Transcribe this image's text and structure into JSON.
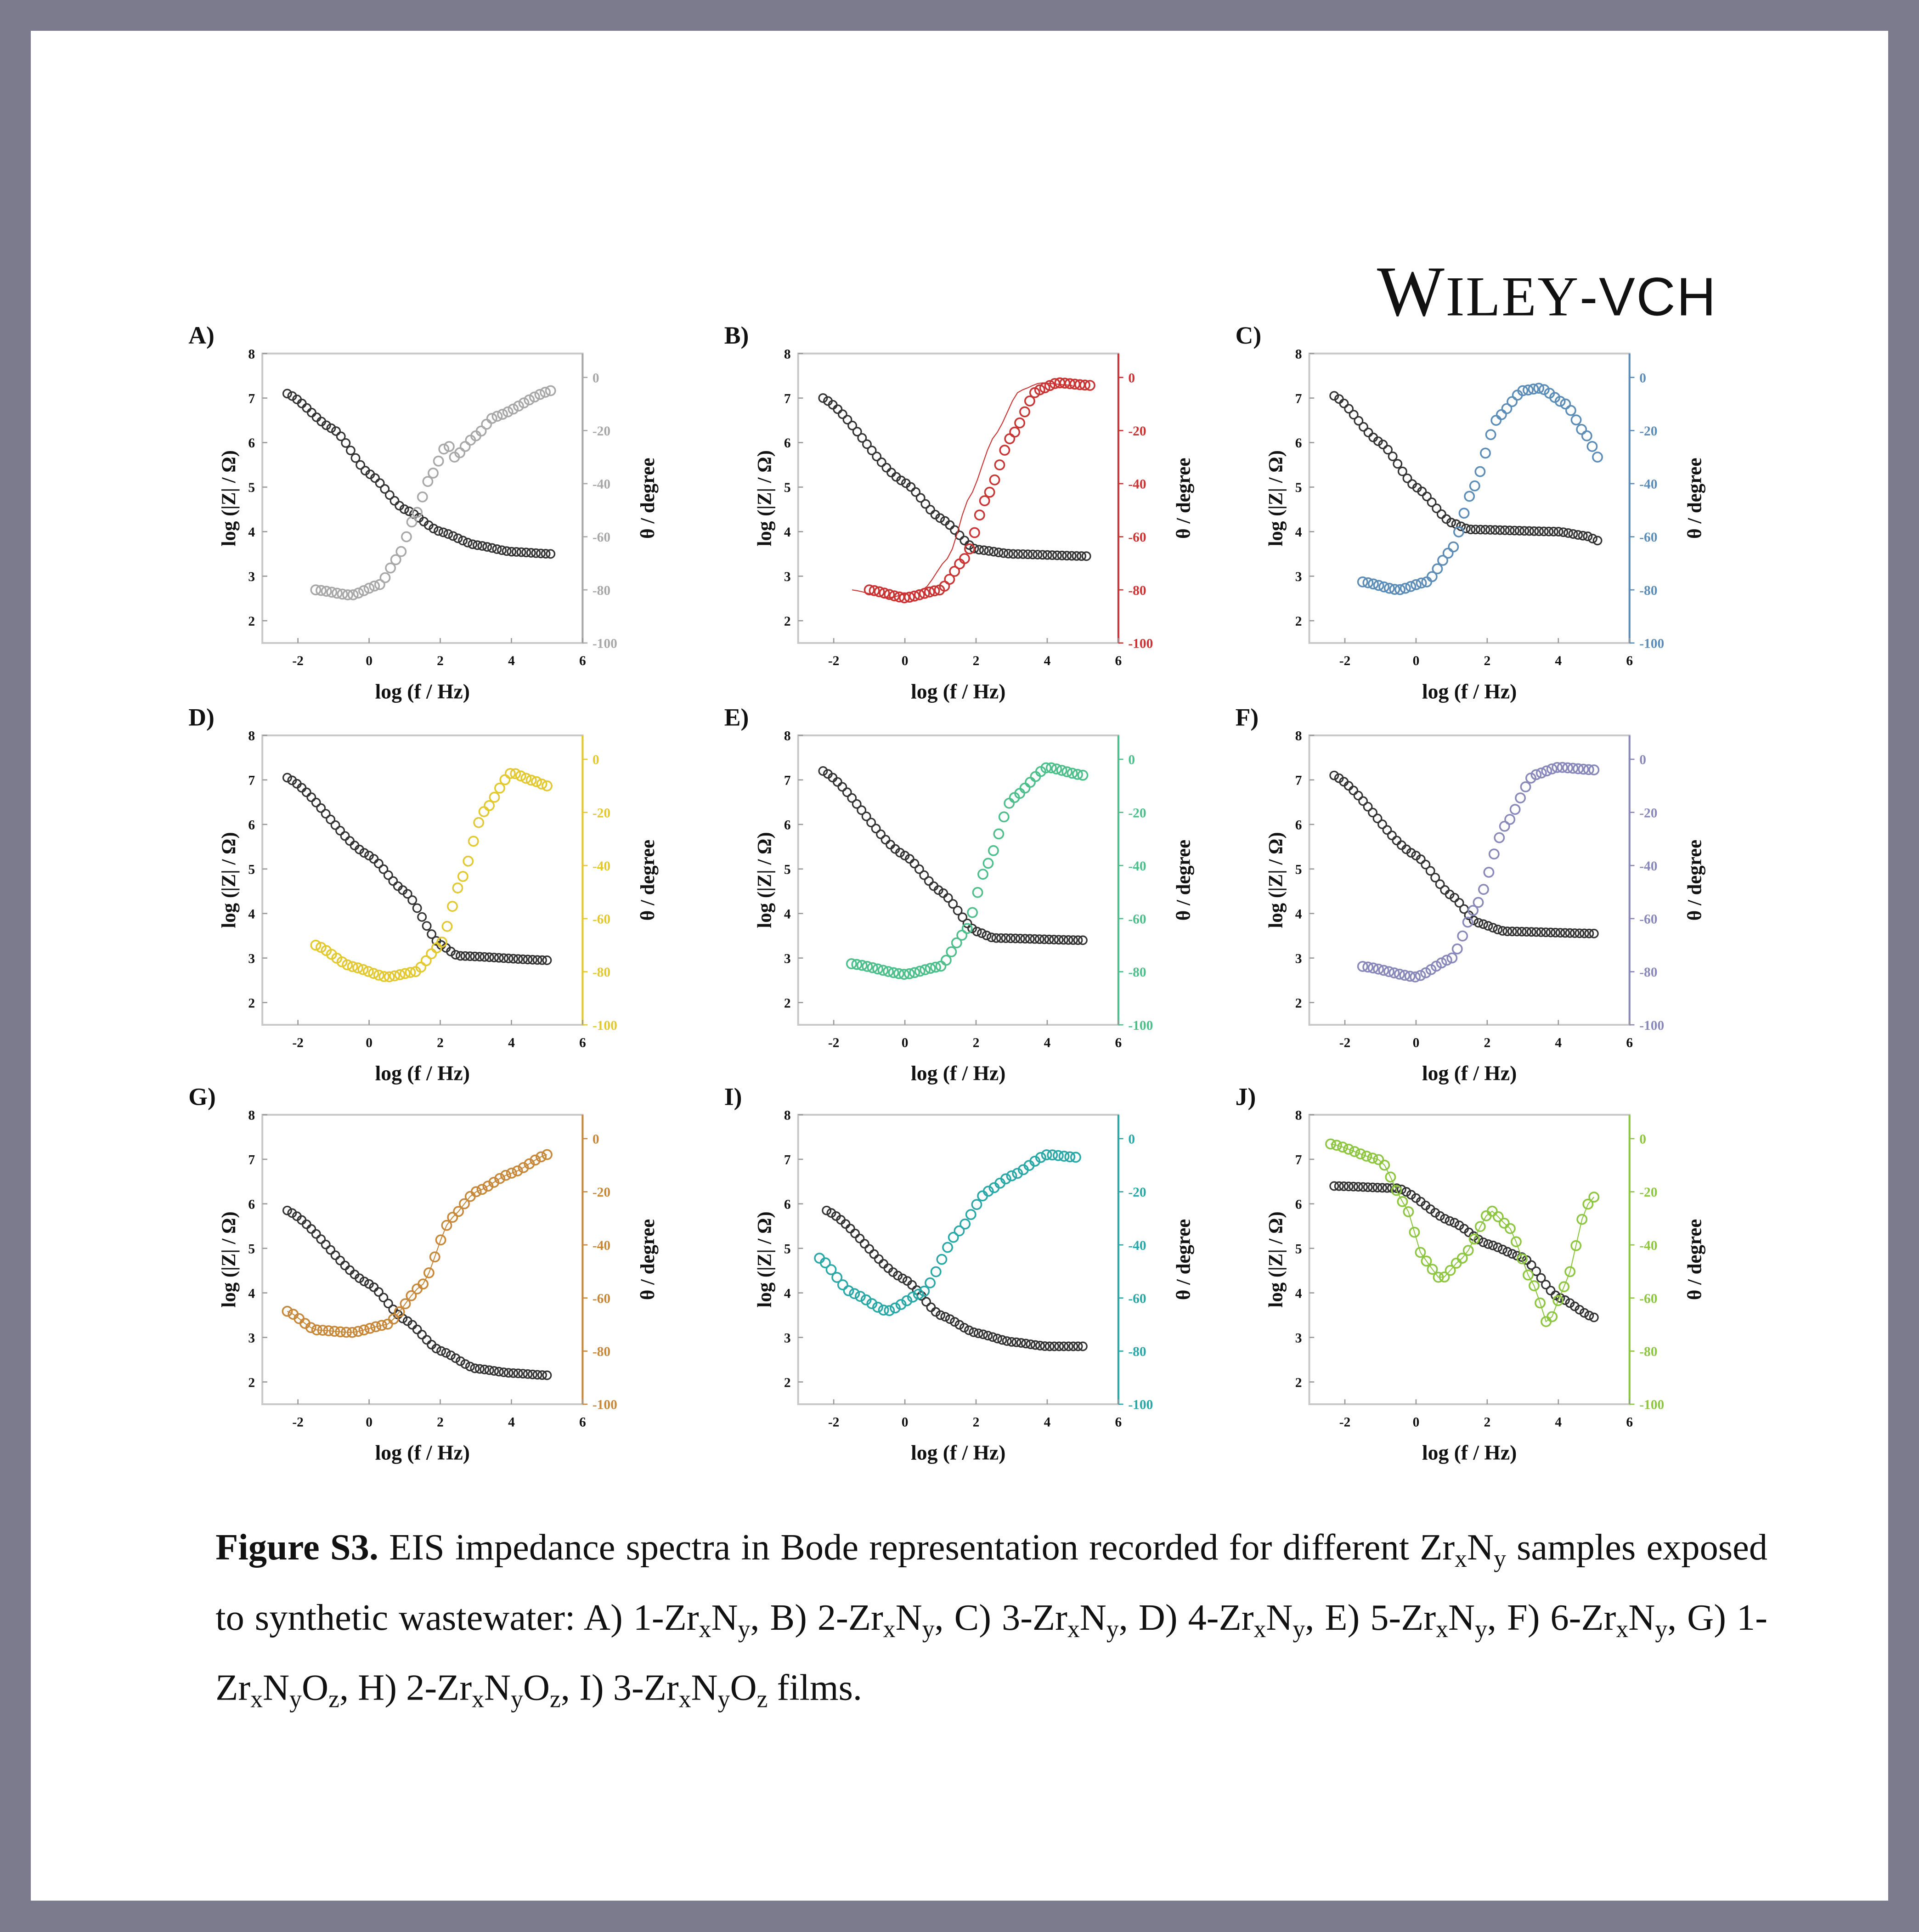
{
  "publisher_logo": {
    "text": "WILEY-VCH"
  },
  "chart_data": [
    {
      "type": "scatter",
      "panel": "A)",
      "color": "#a8a8a8",
      "xlabel": "log (f / Hz)",
      "ylabel": "log (|Z| / Ω)",
      "y2label": "θ / degree",
      "xlim": [
        -3,
        6
      ],
      "ylim": [
        1.5,
        8
      ],
      "y2lim": [
        -100,
        9
      ],
      "xticks": [
        "-2",
        "0",
        "2",
        "4",
        "6"
      ],
      "yticks": [
        "2",
        "3",
        "4",
        "5",
        "6",
        "7",
        "8"
      ],
      "y2ticks": [
        "0",
        "-20",
        "-40",
        "-60",
        "-80",
        "-100"
      ],
      "logZ": [
        [
          -2.3,
          7.1
        ],
        [
          -1,
          6.3
        ],
        [
          0,
          5.3
        ],
        [
          1,
          4.5
        ],
        [
          2,
          4.0
        ],
        [
          3,
          3.7
        ],
        [
          4,
          3.55
        ],
        [
          5.1,
          3.5
        ]
      ],
      "phase": [
        [
          -1.5,
          -80
        ],
        [
          -0.5,
          -82
        ],
        [
          0.3,
          -78
        ],
        [
          0.8,
          -68
        ],
        [
          1.3,
          -52
        ],
        [
          1.7,
          -38
        ],
        [
          2.2,
          -25
        ],
        [
          2.4,
          -30
        ],
        [
          3,
          -22
        ],
        [
          3.5,
          -15
        ],
        [
          5.1,
          -5
        ]
      ],
      "fit": false
    },
    {
      "type": "scatter",
      "panel": "B)",
      "color": "#cc3333",
      "xlabel": "log (f / Hz)",
      "ylabel": "log (|Z| / Ω)",
      "y2label": "θ / degree",
      "xlim": [
        -3,
        6
      ],
      "ylim": [
        1.5,
        8
      ],
      "y2lim": [
        -100,
        9
      ],
      "xticks": [
        "-2",
        "0",
        "2",
        "4",
        "6"
      ],
      "yticks": [
        "2",
        "3",
        "4",
        "5",
        "6",
        "7",
        "8"
      ],
      "y2ticks": [
        "0",
        "-20",
        "-40",
        "-60",
        "-80",
        "-100"
      ],
      "logZ": [
        [
          -2.3,
          7.0
        ],
        [
          0,
          5.1
        ],
        [
          1,
          4.3
        ],
        [
          2,
          3.6
        ],
        [
          3,
          3.5
        ],
        [
          5.1,
          3.45
        ]
      ],
      "phase": [
        [
          -1,
          -80
        ],
        [
          0,
          -83
        ],
        [
          1,
          -80
        ],
        [
          1.7,
          -68
        ],
        [
          2.3,
          -45
        ],
        [
          3,
          -22
        ],
        [
          3.7,
          -5
        ],
        [
          4.3,
          -2
        ],
        [
          5.2,
          -3
        ]
      ],
      "fit": true
    },
    {
      "type": "scatter",
      "panel": "C)",
      "color": "#5b8db8",
      "xlabel": "log (f / Hz)",
      "ylabel": "log (|Z| / Ω)",
      "y2label": "θ / degree",
      "xlim": [
        -3,
        6
      ],
      "ylim": [
        1.5,
        8
      ],
      "y2lim": [
        -100,
        9
      ],
      "xticks": [
        "-2",
        "0",
        "2",
        "4",
        "6"
      ],
      "yticks": [
        "2",
        "3",
        "4",
        "5",
        "6",
        "7",
        "8"
      ],
      "y2ticks": [
        "0",
        "-20",
        "-40",
        "-60",
        "-80",
        "-100"
      ],
      "logZ": [
        [
          -2.3,
          7.05
        ],
        [
          -1,
          6
        ],
        [
          0,
          5
        ],
        [
          1,
          4.2
        ],
        [
          1.5,
          4.05
        ],
        [
          4,
          4.0
        ],
        [
          4.8,
          3.9
        ],
        [
          5.1,
          3.8
        ]
      ],
      "phase": [
        [
          -1.5,
          -77
        ],
        [
          -0.5,
          -80
        ],
        [
          0.3,
          -77
        ],
        [
          1,
          -65
        ],
        [
          1.6,
          -42
        ],
        [
          2.3,
          -15
        ],
        [
          3,
          -5
        ],
        [
          3.5,
          -4
        ],
        [
          4.2,
          -10
        ],
        [
          4.8,
          -22
        ],
        [
          5.1,
          -30
        ]
      ],
      "fit": false
    },
    {
      "type": "scatter",
      "panel": "D)",
      "color": "#e3c92f",
      "xlabel": "log (f / Hz)",
      "ylabel": "log (|Z| / Ω)",
      "y2label": "θ / degree",
      "xlim": [
        -3,
        6
      ],
      "ylim": [
        1.5,
        8
      ],
      "y2lim": [
        -100,
        9
      ],
      "xticks": [
        "-2",
        "0",
        "2",
        "4",
        "6"
      ],
      "yticks": [
        "2",
        "3",
        "4",
        "5",
        "6",
        "7",
        "8"
      ],
      "y2ticks": [
        "0",
        "-20",
        "-40",
        "-60",
        "-80",
        "-100"
      ],
      "logZ": [
        [
          -2.3,
          7.05
        ],
        [
          0,
          5.3
        ],
        [
          1,
          4.5
        ],
        [
          2,
          3.3
        ],
        [
          2.5,
          3.05
        ],
        [
          5,
          2.95
        ]
      ],
      "phase": [
        [
          -1.5,
          -70
        ],
        [
          -0.5,
          -78
        ],
        [
          0.5,
          -82
        ],
        [
          1.3,
          -80
        ],
        [
          2,
          -70
        ],
        [
          2.6,
          -45
        ],
        [
          3.2,
          -20
        ],
        [
          4,
          -5
        ],
        [
          4.6,
          -8
        ],
        [
          5,
          -10
        ]
      ],
      "fit": false
    },
    {
      "type": "scatter",
      "panel": "E)",
      "color": "#4dbf8a",
      "xlabel": "log (f / Hz)",
      "ylabel": "log (|Z| / Ω)",
      "y2label": "θ / degree",
      "xlim": [
        -3,
        6
      ],
      "ylim": [
        1.5,
        8
      ],
      "y2lim": [
        -100,
        9
      ],
      "xticks": [
        "-2",
        "0",
        "2",
        "4",
        "6"
      ],
      "yticks": [
        "2",
        "3",
        "4",
        "5",
        "6",
        "7",
        "8"
      ],
      "y2ticks": [
        "0",
        "-20",
        "-40",
        "-60",
        "-80",
        "-100"
      ],
      "logZ": [
        [
          -2.3,
          7.2
        ],
        [
          0,
          5.3
        ],
        [
          1,
          4.5
        ],
        [
          2,
          3.6
        ],
        [
          2.5,
          3.45
        ],
        [
          5,
          3.4
        ]
      ],
      "phase": [
        [
          -1.5,
          -77
        ],
        [
          0,
          -81
        ],
        [
          1,
          -78
        ],
        [
          1.7,
          -65
        ],
        [
          2.3,
          -40
        ],
        [
          3,
          -15
        ],
        [
          4,
          -3
        ],
        [
          5,
          -6
        ]
      ],
      "fit": false
    },
    {
      "type": "scatter",
      "panel": "F)",
      "color": "#8888bb",
      "xlabel": "log (f / Hz)",
      "ylabel": "log (|Z| / Ω)",
      "y2label": "θ / degree",
      "xlim": [
        -3,
        6
      ],
      "ylim": [
        1.5,
        8
      ],
      "y2lim": [
        -100,
        9
      ],
      "xticks": [
        "-2",
        "0",
        "2",
        "4",
        "6"
      ],
      "yticks": [
        "2",
        "3",
        "4",
        "5",
        "6",
        "7",
        "8"
      ],
      "y2ticks": [
        "0",
        "-20",
        "-40",
        "-60",
        "-80",
        "-100"
      ],
      "logZ": [
        [
          -2.3,
          7.1
        ],
        [
          0,
          5.3
        ],
        [
          1,
          4.4
        ],
        [
          1.7,
          3.8
        ],
        [
          2.5,
          3.6
        ],
        [
          5,
          3.55
        ]
      ],
      "phase": [
        [
          -1.5,
          -78
        ],
        [
          0,
          -82
        ],
        [
          1,
          -75
        ],
        [
          1.7,
          -55
        ],
        [
          2.5,
          -25
        ],
        [
          3.3,
          -6
        ],
        [
          4,
          -3
        ],
        [
          5,
          -4
        ]
      ],
      "fit": false
    },
    {
      "type": "scatter",
      "panel": "G)",
      "color": "#c8883a",
      "xlabel": "log (f / Hz)",
      "ylabel": "log (|Z| / Ω)",
      "y2label": "θ / degree",
      "xlim": [
        -3,
        6
      ],
      "ylim": [
        1.5,
        8
      ],
      "y2lim": [
        -100,
        9
      ],
      "xticks": [
        "-2",
        "0",
        "2",
        "4",
        "6"
      ],
      "yticks": [
        "2",
        "3",
        "4",
        "5",
        "6",
        "7",
        "8"
      ],
      "y2ticks": [
        "0",
        "-20",
        "-40",
        "-60",
        "-80",
        "-100"
      ],
      "logZ": [
        [
          -2.3,
          5.85
        ],
        [
          0,
          4.2
        ],
        [
          1,
          3.4
        ],
        [
          2,
          2.7
        ],
        [
          3,
          2.3
        ],
        [
          4,
          2.2
        ],
        [
          5,
          2.15
        ]
      ],
      "phase": [
        [
          -2.3,
          -65
        ],
        [
          -1.5,
          -72
        ],
        [
          -0.5,
          -73
        ],
        [
          0.5,
          -70
        ],
        [
          1.5,
          -55
        ],
        [
          2.3,
          -30
        ],
        [
          3,
          -20
        ],
        [
          4,
          -13
        ],
        [
          5,
          -6
        ]
      ],
      "fit": true
    },
    {
      "type": "scatter",
      "panel": "I)",
      "color": "#2aa7a7",
      "xlabel": "log (f / Hz)",
      "ylabel": "log (|Z| / Ω)",
      "y2label": "θ / degree",
      "xlim": [
        -3,
        6
      ],
      "ylim": [
        1.5,
        8
      ],
      "y2lim": [
        -100,
        9
      ],
      "xticks": [
        "-2",
        "0",
        "2",
        "4",
        "6"
      ],
      "yticks": [
        "2",
        "3",
        "4",
        "5",
        "6",
        "7",
        "8"
      ],
      "y2ticks": [
        "0",
        "-20",
        "-40",
        "-60",
        "-80",
        "-100"
      ],
      "logZ": [
        [
          -2.2,
          5.85
        ],
        [
          0,
          4.3
        ],
        [
          1,
          3.5
        ],
        [
          2,
          3.1
        ],
        [
          3,
          2.9
        ],
        [
          4,
          2.8
        ],
        [
          5,
          2.8
        ]
      ],
      "phase": [
        [
          -2.4,
          -45
        ],
        [
          -1.5,
          -58
        ],
        [
          -0.5,
          -65
        ],
        [
          0.5,
          -58
        ],
        [
          1.5,
          -35
        ],
        [
          2.3,
          -20
        ],
        [
          3,
          -14
        ],
        [
          4,
          -6
        ],
        [
          4.8,
          -7
        ]
      ],
      "fit": false
    },
    {
      "type": "scatter",
      "panel": "J)",
      "color": "#8dc63f",
      "xlabel": "log (f / Hz)",
      "ylabel": "log (|Z| / Ω)",
      "y2label": "θ / degree",
      "xlim": [
        -3,
        6
      ],
      "ylim": [
        1.5,
        8
      ],
      "y2lim": [
        -100,
        9
      ],
      "xticks": [
        "-2",
        "0",
        "2",
        "4",
        "6"
      ],
      "yticks": [
        "2",
        "3",
        "4",
        "5",
        "6",
        "7",
        "8"
      ],
      "y2ticks": [
        "0",
        "-20",
        "-40",
        "-60",
        "-80",
        "-100"
      ],
      "logZ": [
        [
          -2.3,
          6.4
        ],
        [
          -0.5,
          6.35
        ],
        [
          1,
          5.6
        ],
        [
          2,
          5.1
        ],
        [
          3,
          4.8
        ],
        [
          4,
          3.9
        ],
        [
          5,
          3.45
        ]
      ],
      "phase": [
        [
          -2.4,
          -2
        ],
        [
          -1,
          -8
        ],
        [
          -0.3,
          -25
        ],
        [
          0.2,
          -45
        ],
        [
          0.7,
          -53
        ],
        [
          1.3,
          -45
        ],
        [
          2.1,
          -27
        ],
        [
          2.6,
          -33
        ],
        [
          3.3,
          -55
        ],
        [
          3.7,
          -70
        ],
        [
          4.2,
          -55
        ],
        [
          4.8,
          -25
        ],
        [
          5,
          -22
        ]
      ],
      "fit": true
    }
  ],
  "caption": [
    {
      "t": "Figure S3.",
      "b": true
    },
    {
      "t": " EIS impedance spectra in Bode representation recorded for different Zr"
    },
    {
      "t": "x",
      "sub": true
    },
    {
      "t": "N"
    },
    {
      "t": "y",
      "sub": true
    },
    {
      "t": " samples exposed to synthetic wastewater: A) 1-Zr"
    },
    {
      "t": "x",
      "sub": true
    },
    {
      "t": "N"
    },
    {
      "t": "y",
      "sub": true
    },
    {
      "t": ", B) 2-Zr"
    },
    {
      "t": "x",
      "sub": true
    },
    {
      "t": "N"
    },
    {
      "t": "y",
      "sub": true
    },
    {
      "t": ", C) 3-Zr"
    },
    {
      "t": "x",
      "sub": true
    },
    {
      "t": "N"
    },
    {
      "t": "y",
      "sub": true
    },
    {
      "t": ", D) 4-Zr"
    },
    {
      "t": "x",
      "sub": true
    },
    {
      "t": "N"
    },
    {
      "t": "y",
      "sub": true
    },
    {
      "t": ", E) 5-Zr"
    },
    {
      "t": "x",
      "sub": true
    },
    {
      "t": "N"
    },
    {
      "t": "y",
      "sub": true
    },
    {
      "t": ", F) 6-Zr"
    },
    {
      "t": "x",
      "sub": true
    },
    {
      "t": "N"
    },
    {
      "t": "y",
      "sub": true
    },
    {
      "t": ", G) 1-Zr"
    },
    {
      "t": "x",
      "sub": true
    },
    {
      "t": "N"
    },
    {
      "t": "y",
      "sub": true
    },
    {
      "t": "O"
    },
    {
      "t": "z",
      "sub": true
    },
    {
      "t": ", H) 2-Zr"
    },
    {
      "t": "x",
      "sub": true
    },
    {
      "t": "N"
    },
    {
      "t": "y",
      "sub": true
    },
    {
      "t": "O"
    },
    {
      "t": "z",
      "sub": true
    },
    {
      "t": ", I) 3-Zr"
    },
    {
      "t": "x",
      "sub": true
    },
    {
      "t": "N"
    },
    {
      "t": "y",
      "sub": true
    },
    {
      "t": "O"
    },
    {
      "t": "z",
      "sub": true
    },
    {
      "t": " films."
    }
  ]
}
